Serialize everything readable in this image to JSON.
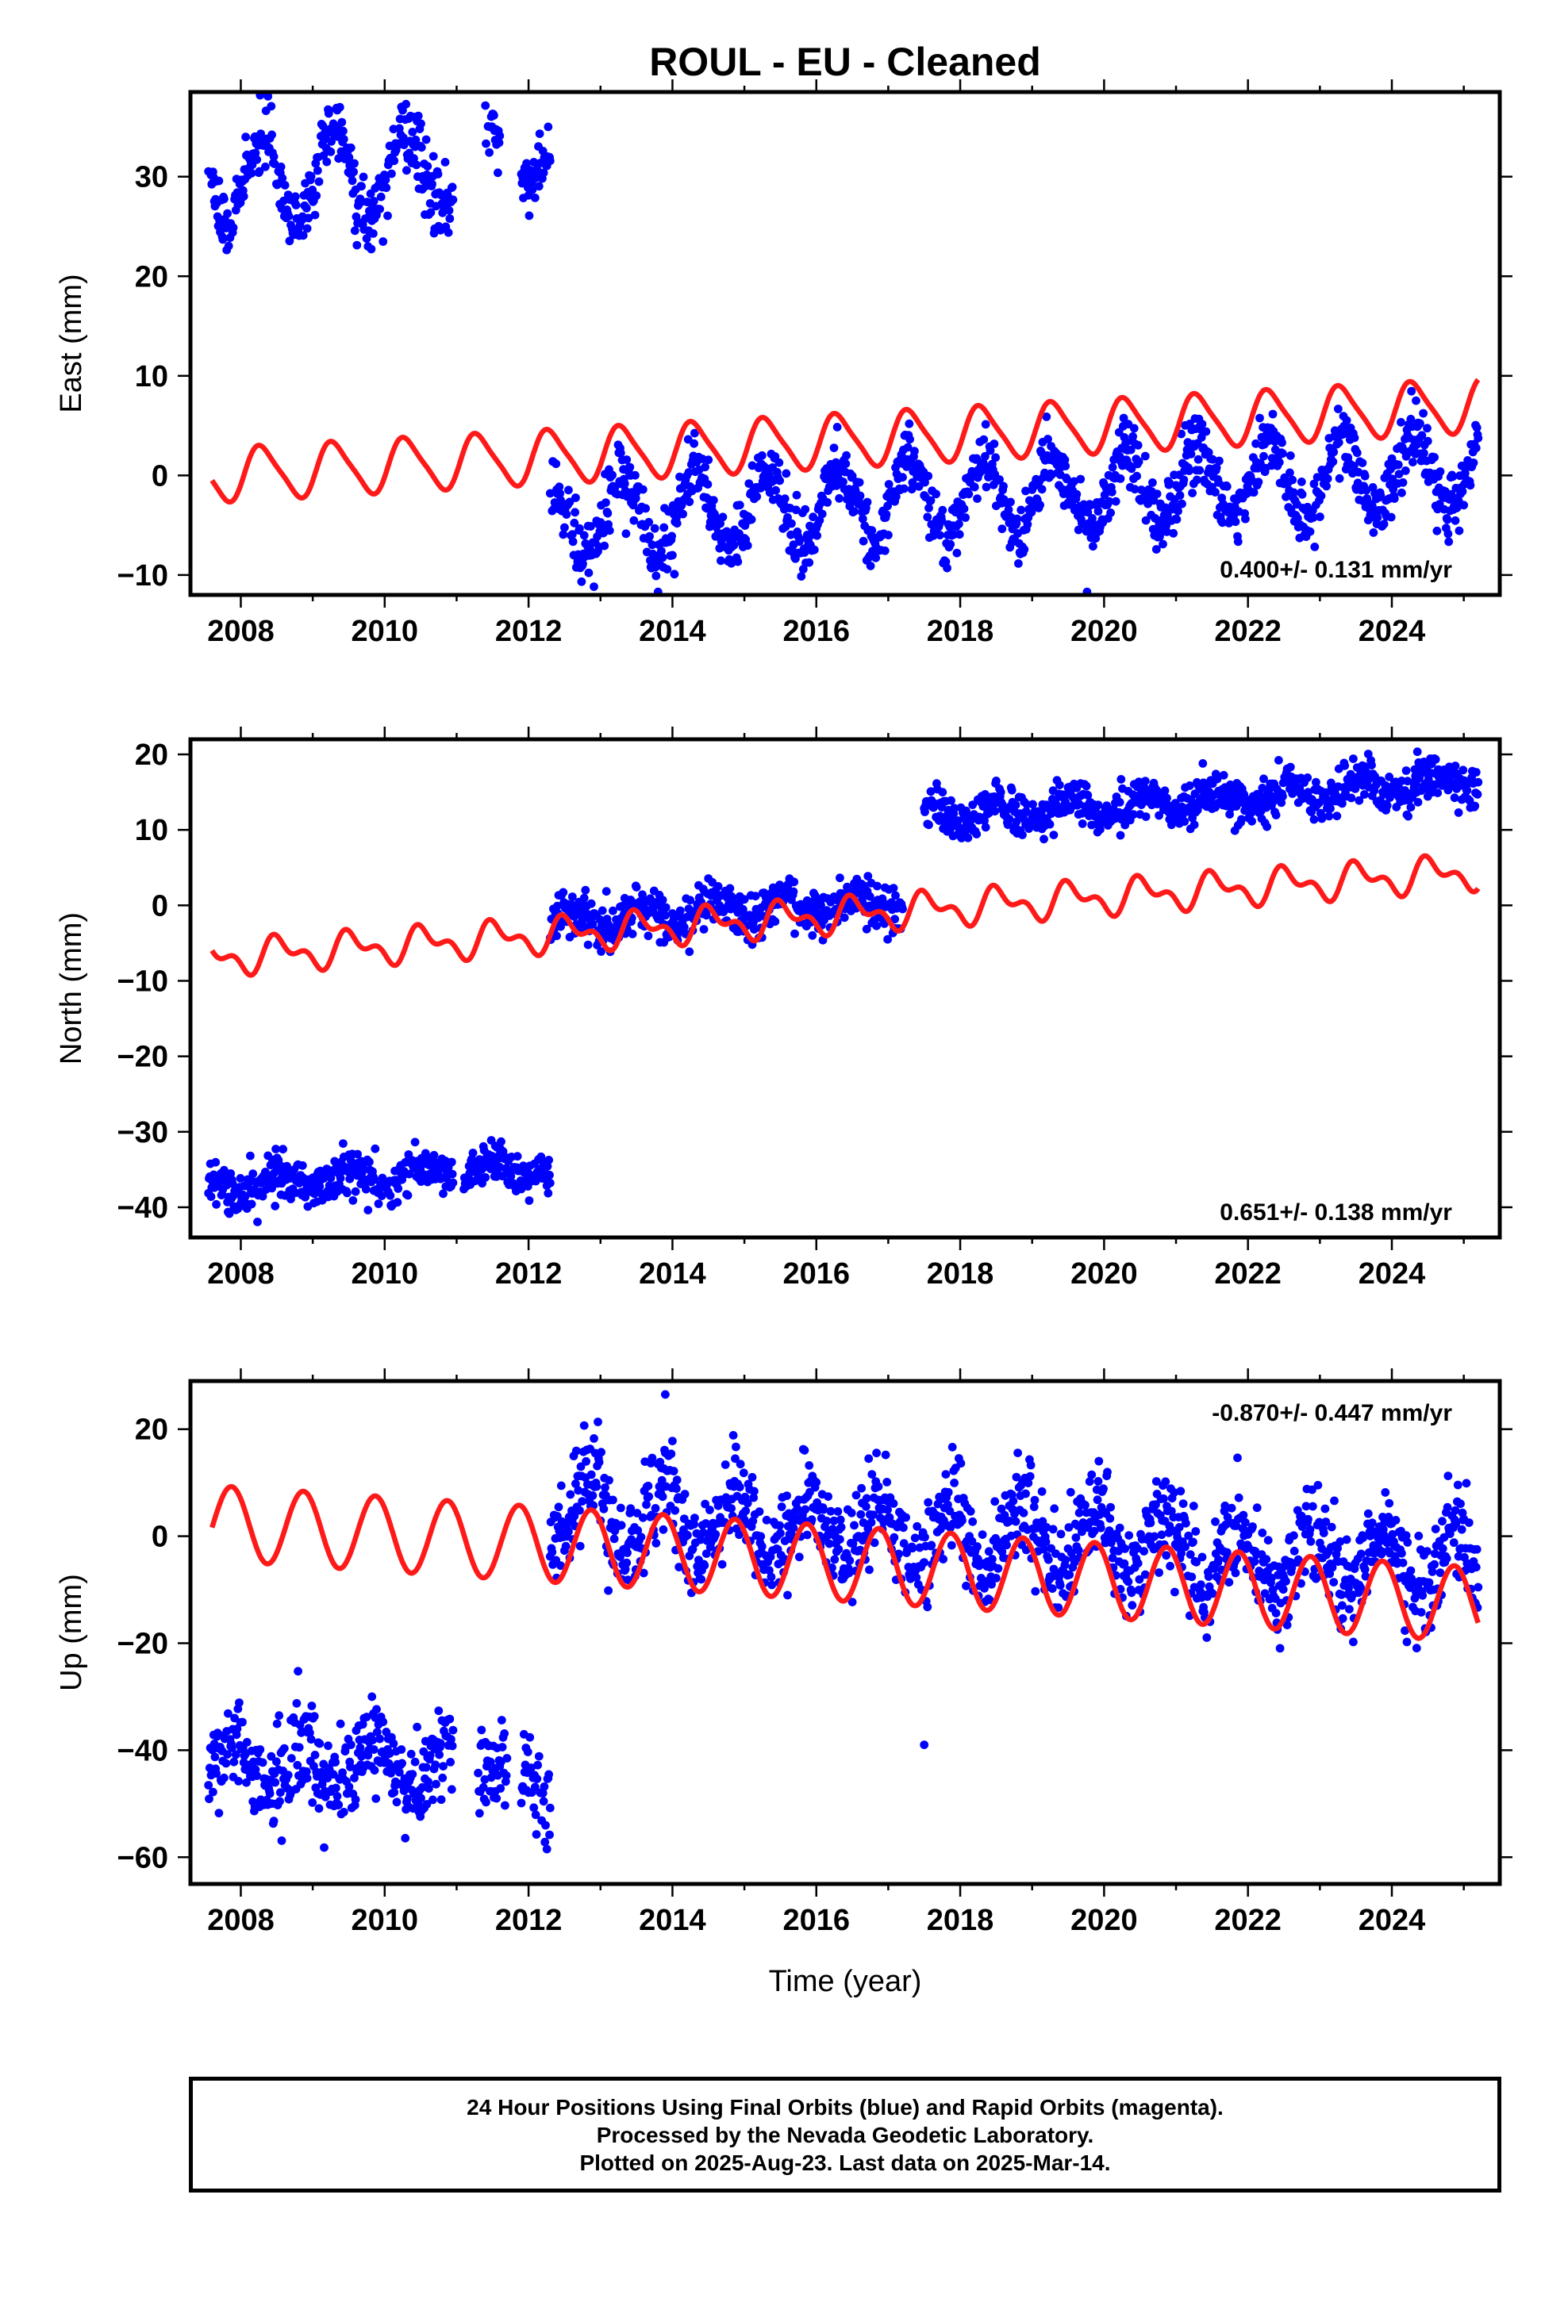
{
  "title": "ROUL  - EU - Cleaned",
  "xlabel": "Time (year)",
  "footer": {
    "line1": "24 Hour Positions Using Final Orbits (blue) and Rapid Orbits (magenta).",
    "line2": "Processed by the Nevada Geodetic Laboratory.",
    "line3": "Plotted on 2025-Aug-23. Last data on 2025-Mar-14."
  },
  "colors": {
    "points": "#0000ff",
    "model": "#ff1a1a",
    "frame": "#000000"
  },
  "chart_data": [
    {
      "type": "scatter",
      "ylabel": "East (mm)",
      "rate_label": "0.400+/- 0.131 mm/yr",
      "rate_position": "bottom-right",
      "xlim": [
        2007.3,
        2025.5
      ],
      "ylim": [
        -12,
        38.5
      ],
      "xticks": [
        2008,
        2010,
        2012,
        2014,
        2016,
        2018,
        2020,
        2022,
        2024
      ],
      "yticks": [
        -10,
        0,
        10,
        20,
        30
      ],
      "data_segments": [
        {
          "start": 2007.55,
          "end": 2010.95,
          "mean": 29.5,
          "trend": 0.4,
          "amp": 4.2,
          "phase": 0.05,
          "noise": 1.8
        },
        {
          "start": 2011.4,
          "end": 2011.6,
          "mean": 33.5,
          "trend": 0.0,
          "amp": 1.5,
          "phase": 0.05,
          "noise": 1.6
        },
        {
          "start": 2011.9,
          "end": 2012.3,
          "mean": 30.0,
          "trend": 0.0,
          "amp": 1.5,
          "phase": 0.05,
          "noise": 1.5
        },
        {
          "start": 2012.3,
          "end": 2025.2,
          "mean": -4.5,
          "trend": 0.4,
          "amp": 3.8,
          "phase": 0.05,
          "noise": 1.6
        }
      ],
      "model": {
        "start": 2007.6,
        "end": 2025.2,
        "value_at_start": 0.0,
        "slope": 0.4,
        "amp": 2.6,
        "phase": 0.05,
        "amp2": 0.5
      }
    },
    {
      "type": "scatter",
      "ylabel": "North (mm)",
      "rate_label": "0.651+/- 0.138 mm/yr",
      "rate_position": "bottom-right",
      "xlim": [
        2007.3,
        2025.5
      ],
      "ylim": [
        -44,
        22
      ],
      "xticks": [
        2008,
        2010,
        2012,
        2014,
        2016,
        2018,
        2020,
        2022,
        2024
      ],
      "yticks": [
        -40,
        -30,
        -20,
        -10,
        0,
        10,
        20
      ],
      "data_segments": [
        {
          "start": 2007.55,
          "end": 2010.95,
          "mean": -37.5,
          "trend": 0.6,
          "amp": 1.2,
          "phase": 0.3,
          "noise": 1.5
        },
        {
          "start": 2011.1,
          "end": 2012.3,
          "mean": -35.0,
          "trend": 0.0,
          "amp": 1.0,
          "phase": 0.3,
          "noise": 1.3
        },
        {
          "start": 2012.3,
          "end": 2017.2,
          "mean": -2.5,
          "trend": 0.65,
          "amp": 1.5,
          "phase": 0.3,
          "noise": 1.5
        },
        {
          "start": 2017.5,
          "end": 2025.2,
          "mean": 11.5,
          "trend": 0.65,
          "amp": 1.3,
          "phase": 0.3,
          "noise": 1.4
        }
      ],
      "model": {
        "start": 2007.6,
        "end": 2025.2,
        "value_at_start": -7.0,
        "slope": 0.65,
        "amp": 1.8,
        "phase": 0.3,
        "amp2": 1.2
      }
    },
    {
      "type": "scatter",
      "ylabel": "Up (mm)",
      "rate_label": "-0.870+/- 0.447 mm/yr",
      "rate_position": "top-right",
      "xlim": [
        2007.3,
        2025.5
      ],
      "ylim": [
        -65,
        29
      ],
      "xticks": [
        2008,
        2010,
        2012,
        2014,
        2016,
        2018,
        2020,
        2022,
        2024
      ],
      "yticks": [
        -60,
        -40,
        -20,
        0,
        20
      ],
      "data_segments": [
        {
          "start": 2007.55,
          "end": 2010.95,
          "mean": -43.0,
          "trend": 0.0,
          "amp": 4.0,
          "phase": 0.62,
          "noise": 4.5
        },
        {
          "start": 2011.3,
          "end": 2011.7,
          "mean": -43.0,
          "trend": 0.0,
          "amp": 2.0,
          "phase": 0.62,
          "noise": 4.0
        },
        {
          "start": 2011.9,
          "end": 2012.3,
          "mean": -47.0,
          "trend": 0.0,
          "amp": 2.0,
          "phase": 0.62,
          "noise": 4.0
        },
        {
          "start": 2012.3,
          "end": 2025.2,
          "mean": 5.0,
          "trend": -0.87,
          "amp": 6.0,
          "phase": 0.62,
          "noise": 4.5
        }
      ],
      "outliers": [
        [
          2013.9,
          26.5
        ],
        [
          2017.5,
          -39.0
        ]
      ],
      "model": {
        "start": 2007.6,
        "end": 2025.2,
        "value_at_start": 2.5,
        "slope": -0.87,
        "amp": 7.0,
        "phase": 0.62,
        "amp2": 0.0
      }
    }
  ]
}
